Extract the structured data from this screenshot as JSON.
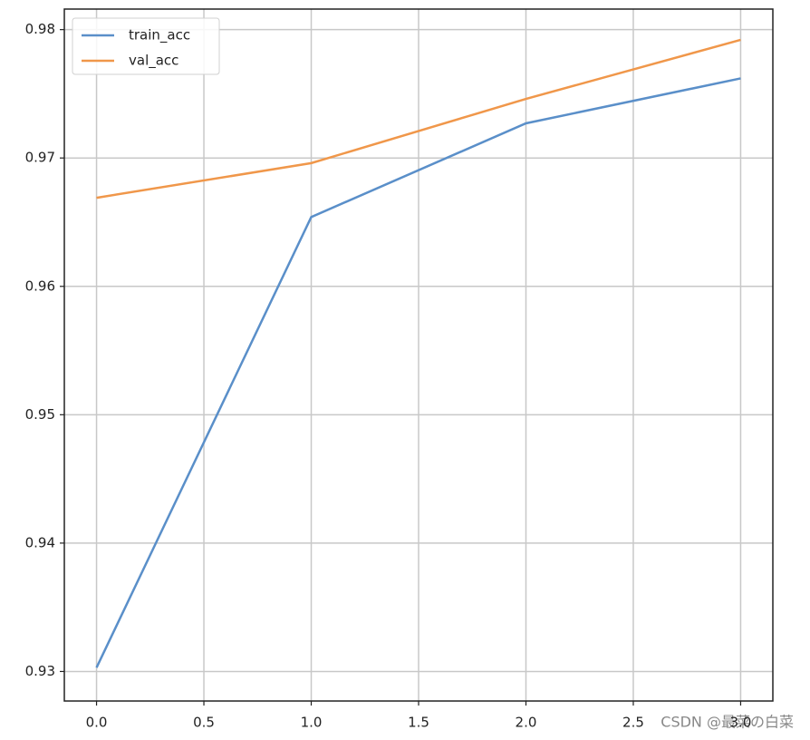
{
  "chart_data": {
    "type": "line",
    "x": [
      0,
      1,
      2,
      3
    ],
    "series": [
      {
        "name": "train_acc",
        "color": "#5a8fc9",
        "values": [
          0.9303,
          0.9654,
          0.9727,
          0.9762
        ]
      },
      {
        "name": "val_acc",
        "color": "#f0974a",
        "values": [
          0.9669,
          0.9696,
          0.9746,
          0.9792
        ]
      }
    ],
    "xlim": [
      -0.15,
      3.15
    ],
    "xticks": [
      {
        "value": 0,
        "label": "0.0"
      },
      {
        "value": 0.5,
        "label": "0.5"
      },
      {
        "value": 1,
        "label": "1.0"
      },
      {
        "value": 1.5,
        "label": "1.5"
      },
      {
        "value": 2,
        "label": "2.0"
      },
      {
        "value": 2.5,
        "label": "2.5"
      },
      {
        "value": 3,
        "label": "3.0"
      }
    ],
    "ylim": [
      0.9277,
      0.9816
    ],
    "yticks": [
      0.93,
      0.94,
      0.95,
      0.96,
      0.97,
      0.98
    ],
    "grid": true,
    "legend": "upper-left",
    "watermark": "CSDN @最菜の白菜"
  }
}
